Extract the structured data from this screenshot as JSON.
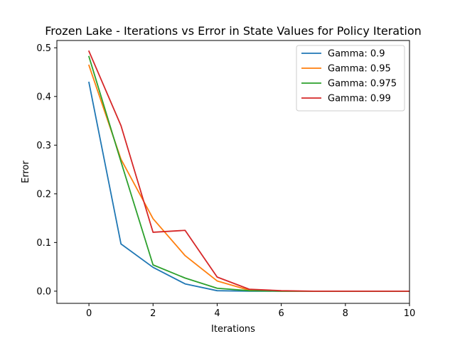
{
  "chart_data": {
    "type": "line",
    "title": "Frozen Lake - Iterations vs Error in State Values for Policy Iteration",
    "xlabel": "Iterations",
    "ylabel": "Error",
    "xlim": [
      -1,
      10
    ],
    "ylim": [
      -0.025,
      0.515
    ],
    "xticks": [
      0,
      2,
      4,
      6,
      8,
      10
    ],
    "yticks": [
      0.0,
      0.1,
      0.2,
      0.3,
      0.4,
      0.5
    ],
    "grid": false,
    "legend_position": "top-right",
    "x": [
      0,
      1,
      2,
      3,
      4,
      5,
      6,
      7,
      8,
      9,
      10
    ],
    "series": [
      {
        "name": "Gamma: 0.9",
        "color": "#1f77b4",
        "values": [
          0.429,
          0.097,
          0.049,
          0.015,
          0.001,
          0.0,
          0.0,
          0.0,
          0.0,
          0.0,
          0.0
        ]
      },
      {
        "name": "Gamma: 0.95",
        "color": "#ff7f0e",
        "values": [
          0.464,
          0.271,
          0.149,
          0.073,
          0.021,
          0.002,
          0.0,
          0.0,
          0.0,
          0.0,
          0.0
        ]
      },
      {
        "name": "Gamma: 0.975",
        "color": "#2ca02c",
        "values": [
          0.482,
          0.266,
          0.054,
          0.027,
          0.006,
          0.001,
          0.0,
          0.0,
          0.0,
          0.0,
          0.0
        ]
      },
      {
        "name": "Gamma: 0.99",
        "color": "#d62728",
        "values": [
          0.493,
          0.34,
          0.121,
          0.125,
          0.029,
          0.004,
          0.001,
          0.0,
          0.0,
          0.0,
          0.0
        ]
      }
    ]
  }
}
